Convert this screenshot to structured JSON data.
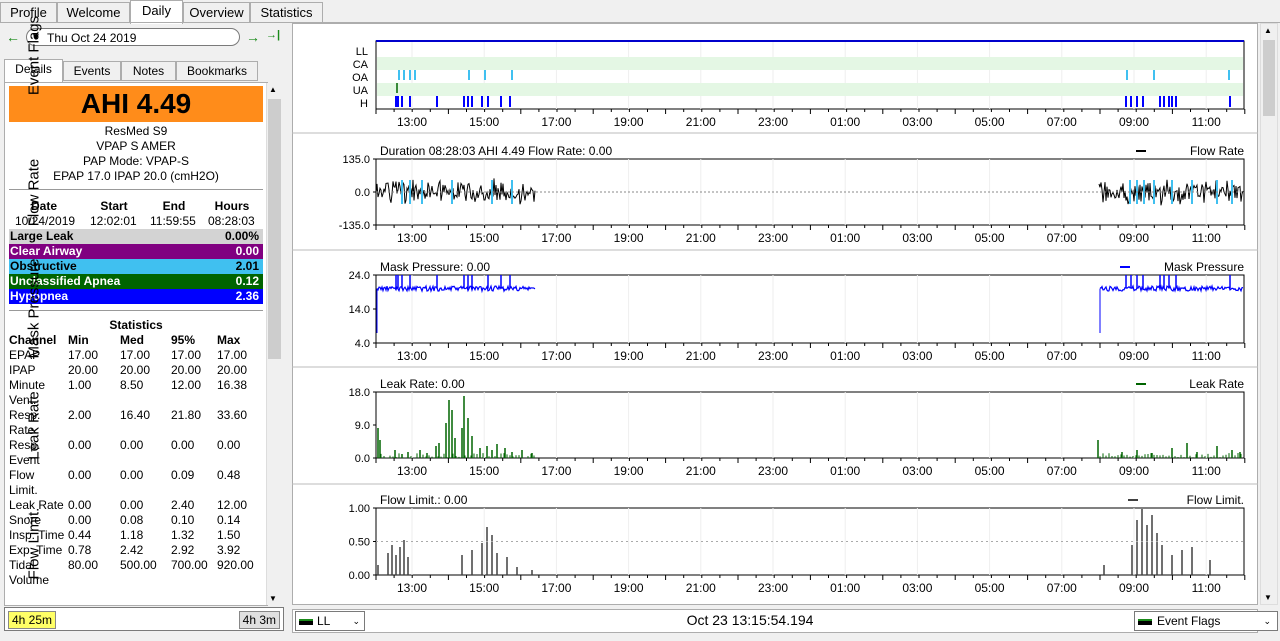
{
  "top_tabs": [
    "Profile",
    "Welcome",
    "Daily",
    "Overview",
    "Statistics"
  ],
  "date_nav": {
    "prev": "←",
    "next": "→",
    "last": "→|",
    "date": "Thu Oct 24 2019"
  },
  "sub_tabs": [
    "Details",
    "Events",
    "Notes",
    "Bookmarks"
  ],
  "ahi": "AHI 4.49",
  "machine": [
    "ResMed S9",
    "VPAP S AMER",
    "PAP Mode: VPAP-S",
    "EPAP 17.0 IPAP 20.0 (cmH2O)"
  ],
  "session": {
    "headers": [
      "Date",
      "Start",
      "End",
      "Hours"
    ],
    "values": [
      "10/24/2019",
      "12:02:01",
      "11:59:55",
      "08:28:03"
    ]
  },
  "events": [
    {
      "label": "Large Leak",
      "value": "0.00%",
      "color": "#d3d3d3",
      "text": "#000000"
    },
    {
      "label": "Clear Airway",
      "value": "0.00",
      "color": "#800080",
      "text": "#ffffff"
    },
    {
      "label": "Obstructive",
      "value": "2.01",
      "color": "#40c0f0",
      "text": "#000000"
    },
    {
      "label": "Unclassified Apnea",
      "value": "0.12",
      "color": "#006400",
      "text": "#ffffff"
    },
    {
      "label": "Hypopnea",
      "value": "2.36",
      "color": "#0000ff",
      "text": "#ffffff"
    }
  ],
  "stats": {
    "title": "Statistics",
    "headers": [
      "Channel",
      "Min",
      "Med",
      "95%",
      "Max"
    ],
    "rows": [
      {
        "ch": "EPAP",
        "vals": [
          "17.00",
          "17.00",
          "17.00",
          "17.00"
        ]
      },
      {
        "ch": "IPAP",
        "vals": [
          "20.00",
          "20.00",
          "20.00",
          "20.00"
        ]
      },
      {
        "ch": "Minute",
        "ch2": "Vent.",
        "vals": [
          "1.00",
          "8.50",
          "12.00",
          "16.38"
        ]
      },
      {
        "ch": "Resp.",
        "ch2": "Rate",
        "vals": [
          "2.00",
          "16.40",
          "21.80",
          "33.60"
        ]
      },
      {
        "ch": "Resp.",
        "ch2": "Event",
        "vals": [
          "0.00",
          "0.00",
          "0.00",
          "0.00"
        ]
      },
      {
        "ch": "Flow",
        "ch2": "Limit.",
        "vals": [
          "0.00",
          "0.00",
          "0.09",
          "0.48"
        ]
      },
      {
        "ch": "Leak Rate",
        "vals": [
          "0.00",
          "0.00",
          "2.40",
          "12.00"
        ]
      },
      {
        "ch": "Snore",
        "vals": [
          "0.00",
          "0.08",
          "0.10",
          "0.14"
        ]
      },
      {
        "ch": "Insp. Time",
        "vals": [
          "0.44",
          "1.18",
          "1.32",
          "1.50"
        ]
      },
      {
        "ch": "Exp. Time",
        "vals": [
          "0.78",
          "2.42",
          "2.92",
          "3.92"
        ]
      },
      {
        "ch": "Tidal",
        "ch2": "Volume",
        "vals": [
          "80.00",
          "500.00",
          "700.00",
          "920.00"
        ]
      }
    ]
  },
  "bottom_left": {
    "left": "4h 25m",
    "right": "4h 3m"
  },
  "bottom_right": {
    "combo": "LL",
    "time": "Oct 23 13:15:54.194",
    "flags": "Event Flags"
  },
  "time_ticks": [
    "13:00",
    "15:00",
    "17:00",
    "19:00",
    "21:00",
    "23:00",
    "01:00",
    "03:00",
    "05:00",
    "07:00",
    "09:00",
    "11:00"
  ],
  "charts": {
    "event_flags": {
      "ylabel": "Event Flags",
      "rows": [
        "LL",
        "CA",
        "OA",
        "UA",
        "H"
      ]
    },
    "flow_rate": {
      "ylabel": "Flow Rate",
      "title": "Duration 08:28:03 AHI 4.49 Flow Rate: 0.00",
      "legend": "Flow Rate",
      "ticks": [
        "135.0",
        "0.0",
        "-135.0"
      ]
    },
    "mask_pressure": {
      "ylabel": "Mask Pressure",
      "title": "Mask Pressure: 0.00",
      "legend": "Mask Pressure",
      "ticks": [
        "24.0",
        "14.0",
        "4.0"
      ]
    },
    "leak_rate": {
      "ylabel": "Leak Rate",
      "title": "Leak Rate: 0.00",
      "legend": "Leak Rate",
      "ticks": [
        "18.0",
        "9.0",
        "0.0"
      ]
    },
    "flow_limit": {
      "ylabel": "Flow Limit.",
      "title": "Flow Limit.: 0.00",
      "legend": "Flow Limit.",
      "ticks": [
        "1.00",
        "0.50",
        "0.00"
      ]
    }
  },
  "colors": {
    "accent_orange": "#ff8c1a",
    "flow": "#000000",
    "pressure": "#0000ff",
    "leak": "#006400",
    "flowlimit": "#404040"
  }
}
